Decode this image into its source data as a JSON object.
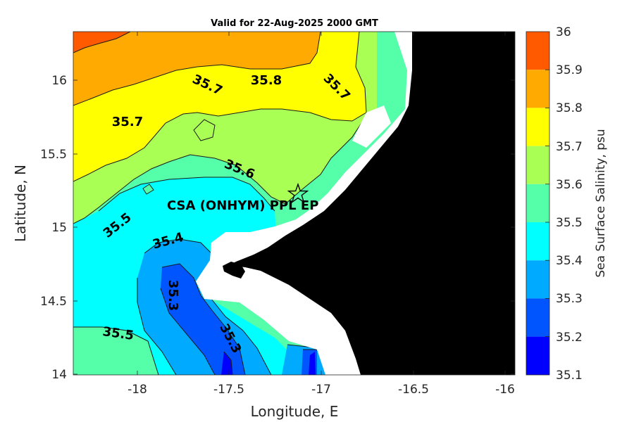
{
  "title": "Valid for 22-Aug-2025 2000 GMT",
  "site_label": "CSA (ONHYM) PPL EP",
  "map": {
    "x_label": "Longitude, E",
    "y_label": "Latitude, N",
    "x_ticks": [
      "-18",
      "-17.5",
      "-17",
      "-16.5",
      "-16"
    ],
    "y_ticks": [
      "16",
      "15.5",
      "15",
      "14.5",
      "14"
    ],
    "land_color": "#000000",
    "mask_color": "#ffffff",
    "site_marker": "star-icon"
  },
  "colorbar": {
    "label": "Sea Surface Salinity, psu",
    "ticks": [
      "36",
      "35.9",
      "35.8",
      "35.7",
      "35.6",
      "35.5",
      "35.4",
      "35.3",
      "35.2",
      "35.1"
    ],
    "levels": [
      {
        "range": "35.9-36.0",
        "color": "#ff5a00"
      },
      {
        "range": "35.8-35.9",
        "color": "#ffaa00"
      },
      {
        "range": "35.7-35.8",
        "color": "#ffff00"
      },
      {
        "range": "35.6-35.7",
        "color": "#aaff55"
      },
      {
        "range": "35.5-35.6",
        "color": "#55ffaa"
      },
      {
        "range": "35.4-35.5",
        "color": "#00ffff"
      },
      {
        "range": "35.3-35.4",
        "color": "#00aaff"
      },
      {
        "range": "35.2-35.3",
        "color": "#0055ff"
      },
      {
        "range": "35.1-35.2",
        "color": "#0000ff"
      }
    ]
  },
  "contour_labels": [
    "35.7",
    "35.8",
    "35.7",
    "35.7",
    "35.6",
    "35.5",
    "35.4",
    "35.3",
    "35.3",
    "35.5"
  ]
}
